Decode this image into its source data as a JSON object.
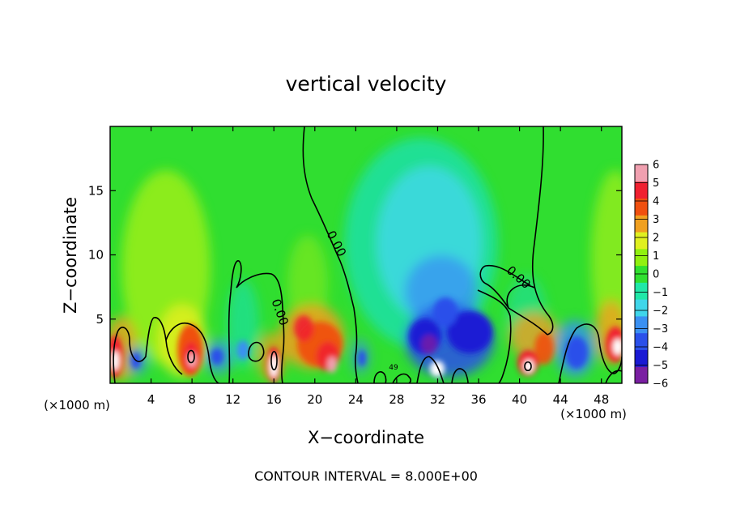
{
  "chart_data": {
    "type": "heatmap",
    "title": "vertical velocity",
    "xlabel": "X−coordinate",
    "ylabel": "Z−coordinate",
    "x_unit": "(×1000 m)",
    "xlim": [
      0,
      50
    ],
    "ylim": [
      0,
      20
    ],
    "x_ticks": [
      4,
      8,
      12,
      16,
      20,
      24,
      28,
      32,
      36,
      40,
      44,
      48
    ],
    "x_tick_labels": [
      "4",
      "8",
      "12",
      "16",
      "20",
      "24",
      "28",
      "32",
      "36",
      "40",
      "44",
      "48"
    ],
    "y_ticks": [
      5,
      10,
      15
    ],
    "y_tick_labels": [
      "5",
      "10",
      "15"
    ],
    "colorbar": {
      "min": -6,
      "max": 6,
      "levels": [
        -6,
        -5,
        -4,
        -3,
        -2,
        -1,
        0,
        1,
        2,
        3,
        4,
        5,
        6
      ],
      "labels": [
        "−6",
        "−5",
        "−4",
        "−3",
        "−2",
        "−1",
        "0",
        "1",
        "2",
        "3",
        "4",
        "5",
        "6"
      ],
      "colors": [
        "#7a1fa2",
        "#1a1ad4",
        "#2a50ea",
        "#3a90f2",
        "#40d6ea",
        "#20e8a8",
        "#30e030",
        "#90f010",
        "#e0f020",
        "#f0a020",
        "#f05010",
        "#f02030",
        "#f0a0b0"
      ]
    },
    "zero_contour_labels": [
      "0.00",
      "0.00",
      "0.00"
    ],
    "stray_label": "49",
    "features": [
      {
        "kind": "updraft",
        "x": 1,
        "z": 1.6,
        "value": 6
      },
      {
        "kind": "updraft",
        "x": 8,
        "z": 2.2,
        "value": 6
      },
      {
        "kind": "updraft",
        "x": 16,
        "z": 1.6,
        "value": 6
      },
      {
        "kind": "updraft",
        "x": 21.5,
        "z": 2.6,
        "value": 5
      },
      {
        "kind": "updraft",
        "x": 41,
        "z": 1.4,
        "value": 6
      },
      {
        "kind": "updraft",
        "x": 49.5,
        "z": 2.8,
        "value": 6
      },
      {
        "kind": "downdraft",
        "x": 30.5,
        "z": 2.6,
        "value": -6
      },
      {
        "kind": "downdraft",
        "x": 34.5,
        "z": 3.8,
        "value": -5
      },
      {
        "kind": "downdraft",
        "x": 45.5,
        "z": 2.2,
        "value": -4
      }
    ]
  },
  "footer": "CONTOUR INTERVAL = 8.000E+00"
}
